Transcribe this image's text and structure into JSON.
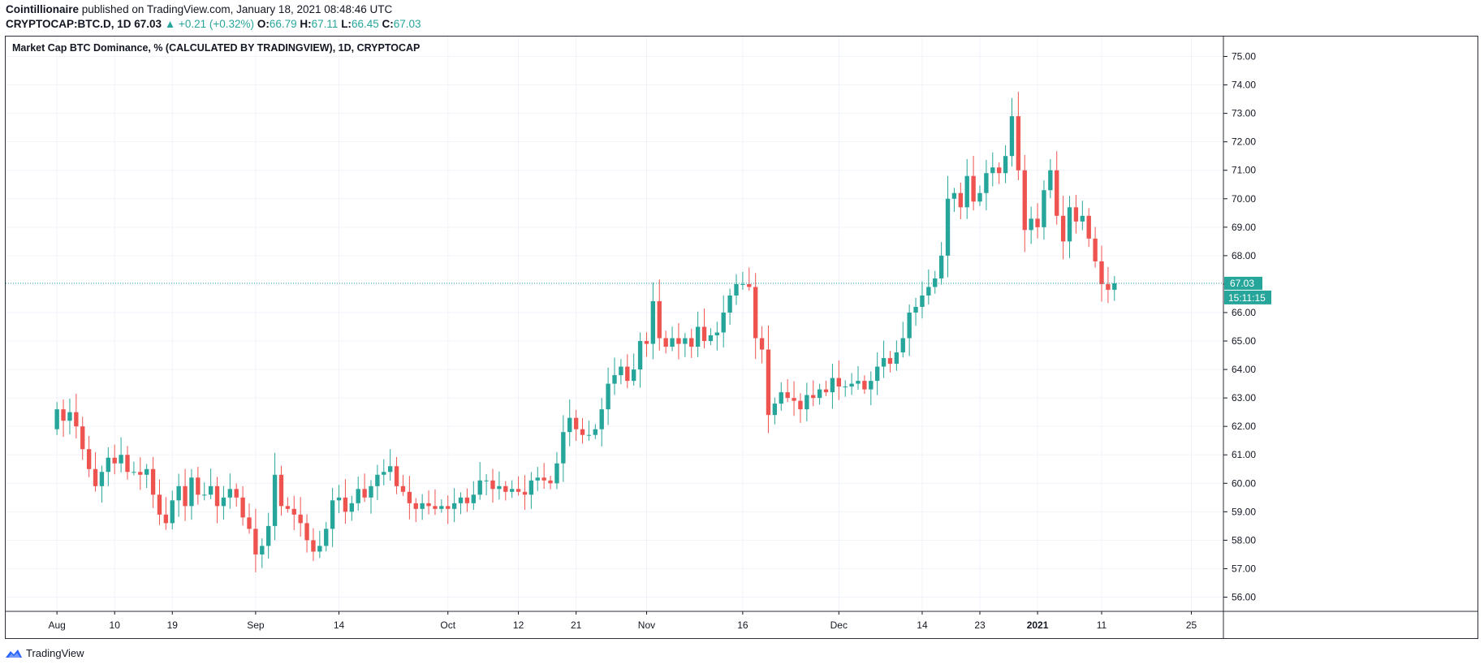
{
  "header": {
    "publisher": "Cointillionaire",
    "published_text": "published on TradingView.com, January 18, 2021 08:48:46 UTC",
    "symbol": "CRYPTOCAP:BTC.D, 1D",
    "last": "67.03",
    "change": "+0.21 (+0.32%)",
    "o_label": "O:",
    "o_value": "66.79",
    "h_label": "H:",
    "h_value": "67.11",
    "l_label": "L:",
    "l_value": "66.45",
    "c_label": "C:",
    "c_value": "67.03"
  },
  "footer": {
    "brand": "TradingView"
  },
  "colors": {
    "up": "#26a69a",
    "down": "#ef5350",
    "grid": "#f0f3fa",
    "axis": "#131722",
    "price_line": "#26a69a"
  },
  "chart_data": {
    "type": "candlestick",
    "title": "Market Cap BTC Dominance, % (CALCULATED BY TRADINGVIEW), 1D, CRYPTOCAP",
    "ylim": [
      55.5,
      75.7
    ],
    "yticks": [
      "75.00",
      "74.00",
      "73.00",
      "72.00",
      "71.00",
      "70.00",
      "69.00",
      "68.00",
      "67.00",
      "66.00",
      "65.00",
      "64.00",
      "63.00",
      "62.00",
      "61.00",
      "60.00",
      "59.00",
      "58.00",
      "57.00",
      "56.00"
    ],
    "last_price_label": "67.03",
    "countdown_label": "15:11:15",
    "x_start_day": -8,
    "x_end_day": 182,
    "xticks": [
      {
        "label": "Aug",
        "day": 0,
        "bold": false
      },
      {
        "label": "10",
        "day": 9,
        "bold": false
      },
      {
        "label": "19",
        "day": 18,
        "bold": false
      },
      {
        "label": "Sep",
        "day": 31,
        "bold": false
      },
      {
        "label": "14",
        "day": 44,
        "bold": false
      },
      {
        "label": "Oct",
        "day": 61,
        "bold": false
      },
      {
        "label": "12",
        "day": 72,
        "bold": false
      },
      {
        "label": "21",
        "day": 81,
        "bold": false
      },
      {
        "label": "Nov",
        "day": 92,
        "bold": false
      },
      {
        "label": "16",
        "day": 107,
        "bold": false
      },
      {
        "label": "Dec",
        "day": 122,
        "bold": false
      },
      {
        "label": "14",
        "day": 135,
        "bold": false
      },
      {
        "label": "23",
        "day": 144,
        "bold": false
      },
      {
        "label": "2021",
        "day": 153,
        "bold": true
      },
      {
        "label": "11",
        "day": 163,
        "bold": false
      },
      {
        "label": "25",
        "day": 177,
        "bold": false
      }
    ],
    "closes": [
      62.6,
      62.2,
      62.5,
      62.0,
      61.2,
      60.5,
      59.9,
      60.4,
      60.9,
      60.7,
      61.0,
      60.4,
      60.4,
      60.3,
      60.5,
      59.6,
      58.9,
      58.6,
      59.4,
      59.9,
      59.2,
      60.2,
      59.6,
      59.6,
      59.9,
      59.2,
      59.5,
      59.8,
      59.5,
      58.8,
      58.4,
      57.5,
      57.8,
      58.5,
      60.3,
      59.2,
      59.1,
      58.9,
      58.6,
      58.0,
      57.6,
      57.8,
      58.4,
      59.4,
      59.5,
      59.0,
      59.3,
      59.8,
      59.5,
      59.9,
      60.3,
      60.4,
      60.6,
      59.9,
      59.7,
      59.3,
      59.1,
      59.3,
      59.2,
      59.1,
      59.2,
      59.1,
      59.3,
      59.5,
      59.3,
      59.6,
      60.1,
      60.1,
      59.8,
      59.9,
      59.7,
      59.8,
      59.7,
      59.6,
      60.1,
      60.2,
      60.1,
      60.0,
      60.7,
      61.8,
      62.3,
      61.9,
      61.7,
      61.7,
      61.9,
      62.6,
      63.5,
      63.8,
      64.1,
      63.6,
      64.0,
      65.0,
      64.9,
      66.4,
      65.1,
      64.8,
      65.1,
      64.9,
      65.1,
      64.8,
      65.5,
      65.0,
      65.2,
      65.3,
      66.0,
      66.6,
      67.0,
      67.0,
      66.9,
      65.1,
      64.7,
      62.4,
      62.8,
      63.2,
      63.0,
      62.9,
      62.6,
      63.1,
      63.0,
      63.3,
      63.2,
      63.7,
      63.4,
      63.4,
      63.5,
      63.6,
      63.3,
      63.6,
      64.1,
      64.4,
      64.2,
      64.6,
      65.1,
      66.0,
      66.2,
      66.6,
      66.9,
      67.2,
      68.0,
      70.0,
      70.2,
      69.7,
      70.8,
      69.9,
      70.2,
      70.9,
      71.1,
      70.9,
      71.5,
      72.9,
      71.0,
      68.9,
      69.3,
      69.0,
      70.3,
      71.0,
      69.4,
      68.5,
      69.7,
      69.2,
      69.4,
      68.6,
      67.8,
      67.0,
      66.8,
      67.03
    ],
    "notes": "One daily candle per close; first candle opens at 61.9, each subsequent candle opens at the previous close."
  }
}
